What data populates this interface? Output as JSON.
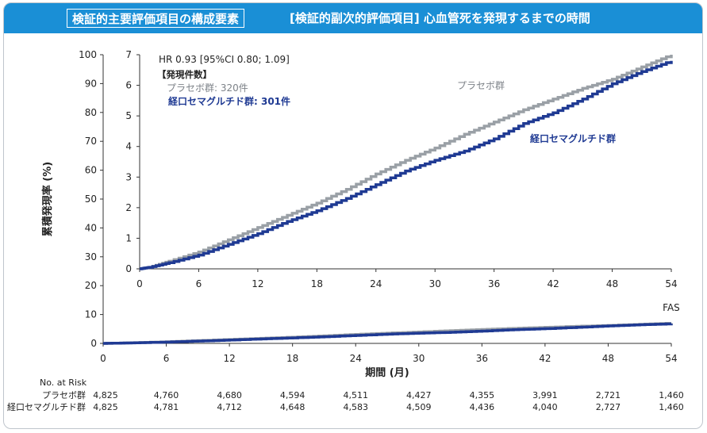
{
  "header": {
    "badge": "検証的主要評価項目の構成要素",
    "subtitle": "[検証的副次的評価項目] 心血管死を発現するまでの時間"
  },
  "chart_data": {
    "type": "line",
    "ylabel": "累積発現率 (%)",
    "xlabel": "期間 (月)",
    "population_label": "FAS",
    "x_ticks": [
      0,
      6,
      12,
      18,
      24,
      30,
      36,
      42,
      48,
      54
    ],
    "main_yaxis": {
      "ylim": [
        0,
        100
      ],
      "ticks": [
        0,
        10,
        20,
        30,
        40,
        50,
        60,
        70,
        80,
        90,
        100
      ]
    },
    "inset": {
      "ylim": [
        0,
        7
      ],
      "yticks": [
        0,
        1,
        2,
        3,
        4,
        5,
        6,
        7
      ],
      "x_ticks": [
        0,
        6,
        12,
        18,
        24,
        30,
        36,
        42,
        48,
        54
      ],
      "hr_text": "HR 0.93 [95%CI 0.80; 1.09]",
      "events_title": "【発現件数】",
      "events": [
        {
          "label": "プラセボ群: 320件"
        },
        {
          "label": "経口セマグルチド群: 301件"
        }
      ]
    },
    "series": [
      {
        "name": "プラセボ群",
        "color": "#9aa0a6",
        "x": [
          0,
          1,
          3,
          6,
          9,
          12,
          15,
          18,
          21,
          24,
          27,
          30,
          33,
          36,
          39,
          42,
          45,
          48,
          51,
          54
        ],
        "y": [
          0,
          0.05,
          0.25,
          0.55,
          0.95,
          1.35,
          1.75,
          2.15,
          2.6,
          3.1,
          3.55,
          3.95,
          4.4,
          4.8,
          5.2,
          5.55,
          5.9,
          6.2,
          6.6,
          7.0
        ]
      },
      {
        "name": "経口セマグルチド群",
        "color": "#1f3a93",
        "x": [
          0,
          1,
          3,
          6,
          9,
          12,
          15,
          18,
          21,
          24,
          27,
          30,
          33,
          36,
          39,
          42,
          45,
          48,
          51,
          54
        ],
        "y": [
          0,
          0.05,
          0.2,
          0.45,
          0.8,
          1.15,
          1.55,
          1.9,
          2.3,
          2.75,
          3.2,
          3.55,
          3.85,
          4.25,
          4.75,
          5.1,
          5.55,
          6.05,
          6.45,
          6.8
        ]
      }
    ],
    "at_risk": {
      "title": "No. at Risk",
      "rows": [
        {
          "label": "プラセボ群",
          "values": [
            "4,825",
            "4,760",
            "4,680",
            "4,594",
            "4,511",
            "4,427",
            "4,355",
            "3,991",
            "2,721",
            "1,460"
          ]
        },
        {
          "label": "経口セマグルチド群",
          "values": [
            "4,825",
            "4,781",
            "4,712",
            "4,648",
            "4,583",
            "4,509",
            "4,436",
            "4,040",
            "2,727",
            "1,460"
          ]
        }
      ]
    }
  }
}
